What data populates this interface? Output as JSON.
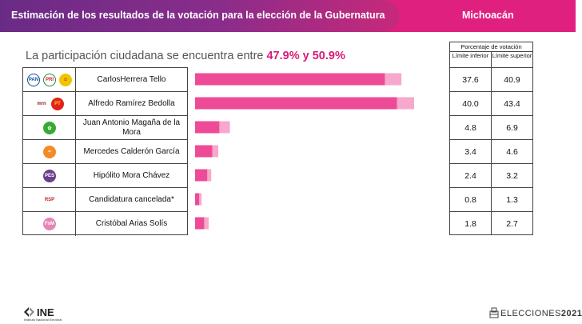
{
  "header": {
    "title": "Estimación de los resultados de la votación para la elección de la Gubernatura",
    "state": "Michoacán"
  },
  "participation": {
    "prefix": "La participación ciudadana se encuentra entre ",
    "low": "47.9%",
    "connector": " y ",
    "high": "50.9%"
  },
  "table_header": {
    "title": "Porcentaje de votación",
    "lower_label": "Límite inferior",
    "upper_label": "Límite superior"
  },
  "colors": {
    "bar_main": "#ee4b97",
    "bar_range": "#f7a8cc",
    "header_purple": "#6a2b86",
    "header_pink": "#e0207f",
    "highlight": "#d81b7a"
  },
  "candidates": [
    {
      "name": "CarlosHerrera Tello",
      "logos": [
        "pan-logo",
        "pri-logo",
        "prd-logo"
      ],
      "lower": "37.6",
      "upper": "40.9"
    },
    {
      "name": "Alfredo Ramírez Bedolla",
      "logos": [
        "morena-logo",
        "pt-logo"
      ],
      "lower": "40.0",
      "upper": "43.4"
    },
    {
      "name": "Juan Antonio Magaña de la Mora",
      "logos": [
        "pvem-logo"
      ],
      "lower": "4.8",
      "upper": "6.9"
    },
    {
      "name": "Mercedes Calderón García",
      "logos": [
        "mc-logo"
      ],
      "lower": "3.4",
      "upper": "4.6"
    },
    {
      "name": "Hipólito Mora Chávez",
      "logos": [
        "pes-logo"
      ],
      "lower": "2.4",
      "upper": "3.2"
    },
    {
      "name": "Candidatura cancelada*",
      "logos": [
        "rsp-logo"
      ],
      "lower": "0.8",
      "upper": "1.3"
    },
    {
      "name": "Cristóbal Arias Solís",
      "logos": [
        "fxm-logo"
      ],
      "lower": "1.8",
      "upper": "2.7"
    }
  ],
  "chart_data": {
    "type": "bar",
    "orientation": "horizontal",
    "categories": [
      "CarlosHerrera Tello",
      "Alfredo Ramírez Bedolla",
      "Juan Antonio Magaña de la Mora",
      "Mercedes Calderón García",
      "Hipólito Mora Chávez",
      "Candidatura cancelada*",
      "Cristóbal Arias Solís"
    ],
    "series": [
      {
        "name": "Límite inferior",
        "values": [
          37.6,
          40.0,
          4.8,
          3.4,
          2.4,
          0.8,
          1.8
        ]
      },
      {
        "name": "Límite superior",
        "values": [
          40.9,
          43.4,
          6.9,
          4.6,
          3.2,
          1.3,
          2.7
        ]
      }
    ],
    "xlim": [
      0,
      43.4
    ],
    "grid": false
  },
  "footer": {
    "ine": "INE",
    "ine_sub": "Instituto Nacional Electoral",
    "elecciones_prefix": "ELECCIONES",
    "elecciones_year": "2021"
  }
}
